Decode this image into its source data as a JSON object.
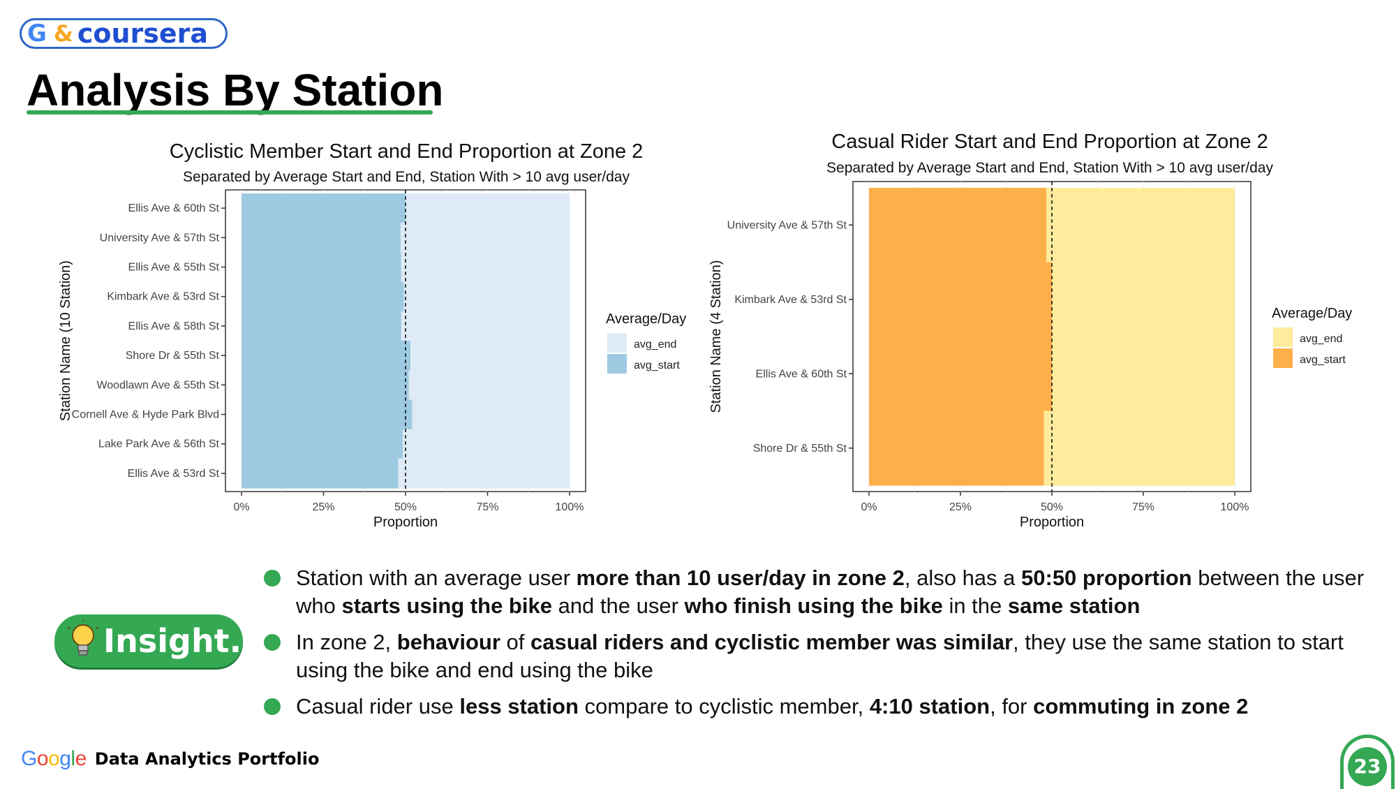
{
  "header": {
    "logo_g": "G",
    "logo_amp": "&",
    "logo_name": "coursera",
    "title": "Analysis By Station"
  },
  "chart_data": [
    {
      "type": "bar",
      "orientation": "horizontal-stacked",
      "title": "Cyclistic Member Start and End Proportion at Zone 2",
      "subtitle": "Separated by Average Start and End, Station With > 10 avg user/day",
      "xlabel": "Proportion",
      "ylabel": "Station Name (10 Station)",
      "xlim": [
        0,
        1
      ],
      "xticks": [
        "0%",
        "25%",
        "50%",
        "75%",
        "100%"
      ],
      "reference_line": 0.5,
      "legend_title": "Average/Day",
      "legend_position": "right",
      "categories": [
        "Ellis Ave & 60th St",
        "University Ave & 57th St",
        "Ellis Ave & 55th St",
        "Kimbark Ave & 53rd St",
        "Ellis Ave & 58th St",
        "Shore Dr & 55th St",
        "Woodlawn Ave & 55th St",
        "Cornell Ave & Hyde Park Blvd",
        "Lake Park Ave & 56th St",
        "Ellis Ave & 53rd St"
      ],
      "series": [
        {
          "name": "avg_start",
          "color": "#9ecae1",
          "values": [
            0.5,
            0.485,
            0.487,
            0.495,
            0.487,
            0.515,
            0.51,
            0.52,
            0.492,
            0.478
          ]
        },
        {
          "name": "avg_end",
          "color": "#deebf7",
          "values": [
            0.5,
            0.515,
            0.513,
            0.505,
            0.513,
            0.485,
            0.49,
            0.48,
            0.508,
            0.522
          ]
        }
      ]
    },
    {
      "type": "bar",
      "orientation": "horizontal-stacked",
      "title": "Casual Rider Start and End Proportion at Zone 2",
      "subtitle": "Separated by Average Start and End, Station With > 10 avg user/day",
      "xlabel": "Proportion",
      "ylabel": "Station Name (4 Station)",
      "xlim": [
        0,
        1
      ],
      "xticks": [
        "0%",
        "25%",
        "50%",
        "75%",
        "100%"
      ],
      "reference_line": 0.5,
      "legend_title": "Average/Day",
      "legend_position": "right",
      "categories": [
        "University Ave & 57th St",
        "Kimbark Ave & 53rd St",
        "Ellis Ave & 60th St",
        "Shore Dr & 55th St"
      ],
      "series": [
        {
          "name": "avg_start",
          "color": "#fdb04a",
          "values": [
            0.485,
            0.5,
            0.5,
            0.478
          ]
        },
        {
          "name": "avg_end",
          "color": "#feeb9c",
          "values": [
            0.515,
            0.5,
            0.5,
            0.522
          ]
        }
      ]
    }
  ],
  "insight": {
    "badge_label": "Insight.",
    "bullets": [
      {
        "parts": [
          {
            "t": "Station with an average user ",
            "b": false
          },
          {
            "t": "more than 10 user/day in zone 2",
            "b": true
          },
          {
            "t": ", also has a ",
            "b": false
          },
          {
            "t": "50:50 proportion",
            "b": true
          },
          {
            "t": " between the user who ",
            "b": false
          },
          {
            "t": "starts using the bike",
            "b": true
          },
          {
            "t": " and the user ",
            "b": false
          },
          {
            "t": "who finish using the bike",
            "b": true
          },
          {
            "t": " in the ",
            "b": false
          },
          {
            "t": "same station",
            "b": true
          }
        ]
      },
      {
        "parts": [
          {
            "t": "In zone 2, ",
            "b": false
          },
          {
            "t": "behaviour",
            "b": true
          },
          {
            "t": " of ",
            "b": false
          },
          {
            "t": "casual riders and cyclistic member was similar",
            "b": true
          },
          {
            "t": ", they use the same station to start using the bike and end using the bike",
            "b": false
          }
        ]
      },
      {
        "parts": [
          {
            "t": "Casual rider use ",
            "b": false
          },
          {
            "t": "less station",
            "b": true
          },
          {
            "t": " compare to cyclistic member, ",
            "b": false
          },
          {
            "t": "4:10 station",
            "b": true
          },
          {
            "t": ", for ",
            "b": false
          },
          {
            "t": "commuting in zone 2",
            "b": true
          }
        ]
      }
    ]
  },
  "footer": {
    "google_word": "Google",
    "label": "Data Analytics Portfolio",
    "page_number": "23"
  }
}
